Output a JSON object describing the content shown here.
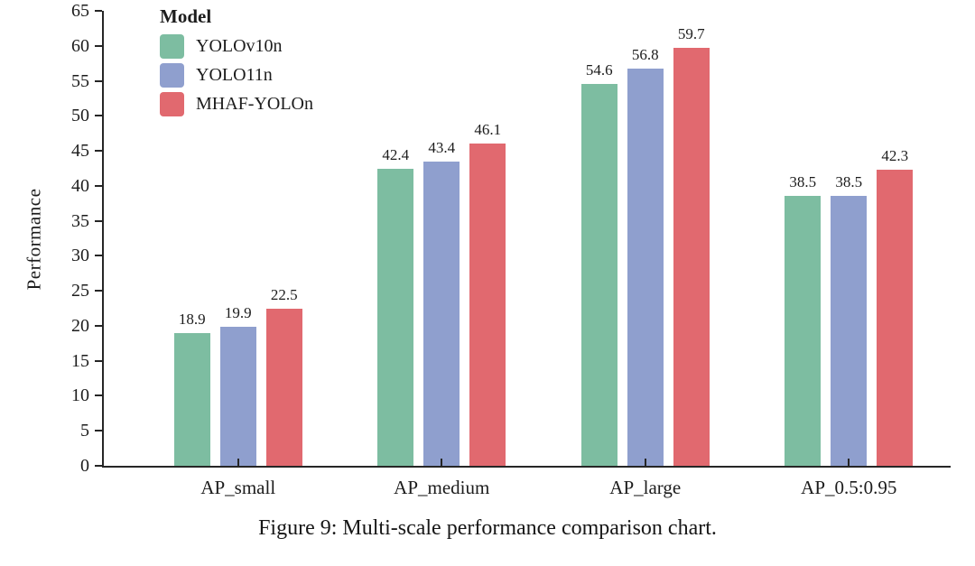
{
  "figure_caption": "Figure 9: Multi-scale performance comparison chart.",
  "chart_data": {
    "type": "bar",
    "title": "",
    "categories": [
      "AP_small",
      "AP_medium",
      "AP_large",
      "AP_0.5:0.95"
    ],
    "series": [
      {
        "name": "YOLOv10n",
        "color": "#7dbda1",
        "values": [
          18.9,
          42.4,
          54.6,
          38.5
        ]
      },
      {
        "name": "YOLO11n",
        "color": "#8f9fce",
        "values": [
          19.9,
          43.4,
          56.8,
          38.5
        ]
      },
      {
        "name": "MHAF-YOLOn",
        "color": "#e1696f",
        "values": [
          22.5,
          46.1,
          59.7,
          42.3
        ]
      }
    ],
    "xlabel": "",
    "ylabel": "Performance",
    "ylim": [
      0,
      65
    ],
    "ytick_step": 5,
    "yticks": [
      0,
      5,
      10,
      15,
      20,
      25,
      30,
      35,
      40,
      45,
      50,
      55,
      60,
      65
    ],
    "value_labels": true,
    "grid": false,
    "legend": {
      "title": "Model",
      "position": "upper-left"
    },
    "axis_color": "#262626",
    "background_color": "#ffffff"
  }
}
